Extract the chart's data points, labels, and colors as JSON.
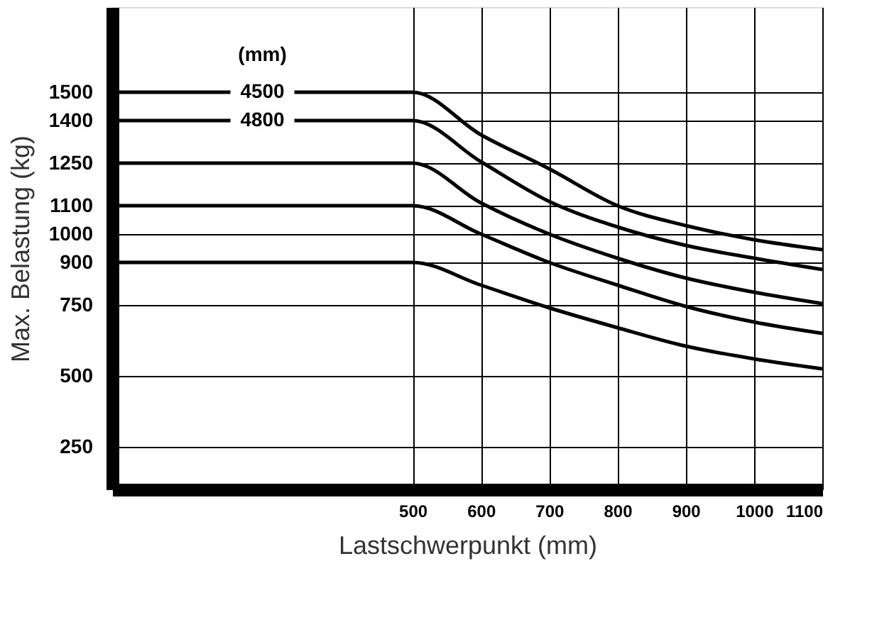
{
  "chart_data": {
    "type": "line",
    "xlabel": "Lastschwerpunkt (mm)",
    "ylabel": "Max. Belastung (kg)",
    "legend_title": "(mm)",
    "x": [
      60,
      500,
      600,
      700,
      800,
      900,
      1000,
      1100
    ],
    "series": [
      {
        "name": "4500",
        "color": "#000000",
        "values": [
          1500,
          1500,
          1350,
          1230,
          1100,
          1030,
          980,
          945
        ]
      },
      {
        "name": "4800",
        "color": "#000000",
        "values": [
          1400,
          1400,
          1255,
          1115,
          1025,
          960,
          915,
          875
        ]
      },
      {
        "color": "#000000",
        "values": [
          1250,
          1250,
          1110,
          1000,
          915,
          845,
          795,
          755
        ]
      },
      {
        "color": "#000000",
        "values": [
          1100,
          1100,
          1000,
          900,
          820,
          745,
          690,
          650
        ]
      },
      {
        "color": "#000000",
        "values": [
          900,
          900,
          820,
          740,
          670,
          605,
          560,
          525
        ]
      }
    ],
    "xlim": [
      60,
      1100
    ],
    "xticks": [
      500,
      600,
      700,
      800,
      900,
      1000,
      1100
    ],
    "ylim": [
      100,
      1800
    ],
    "yticks": [
      250,
      500,
      750,
      900,
      1000,
      1100,
      1250,
      1400,
      1500
    ],
    "grid": true,
    "legend": false,
    "marker": "none",
    "line_style": "solid"
  }
}
